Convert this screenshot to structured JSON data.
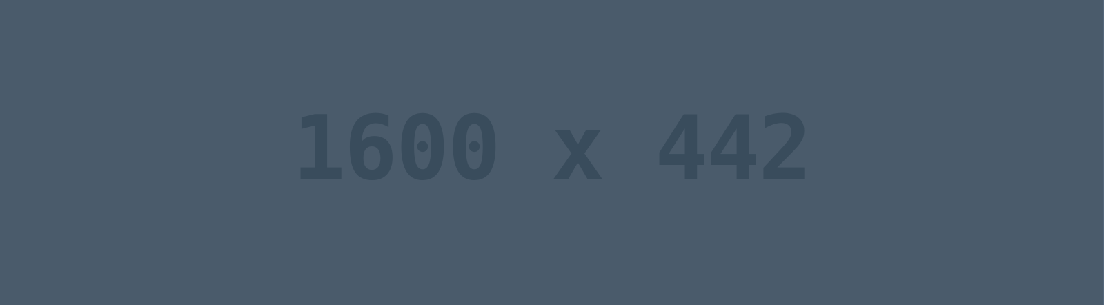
{
  "placeholder": {
    "label": "1600 x 442",
    "background_color": "#4a5b6b",
    "text_color": "#394c5c"
  }
}
